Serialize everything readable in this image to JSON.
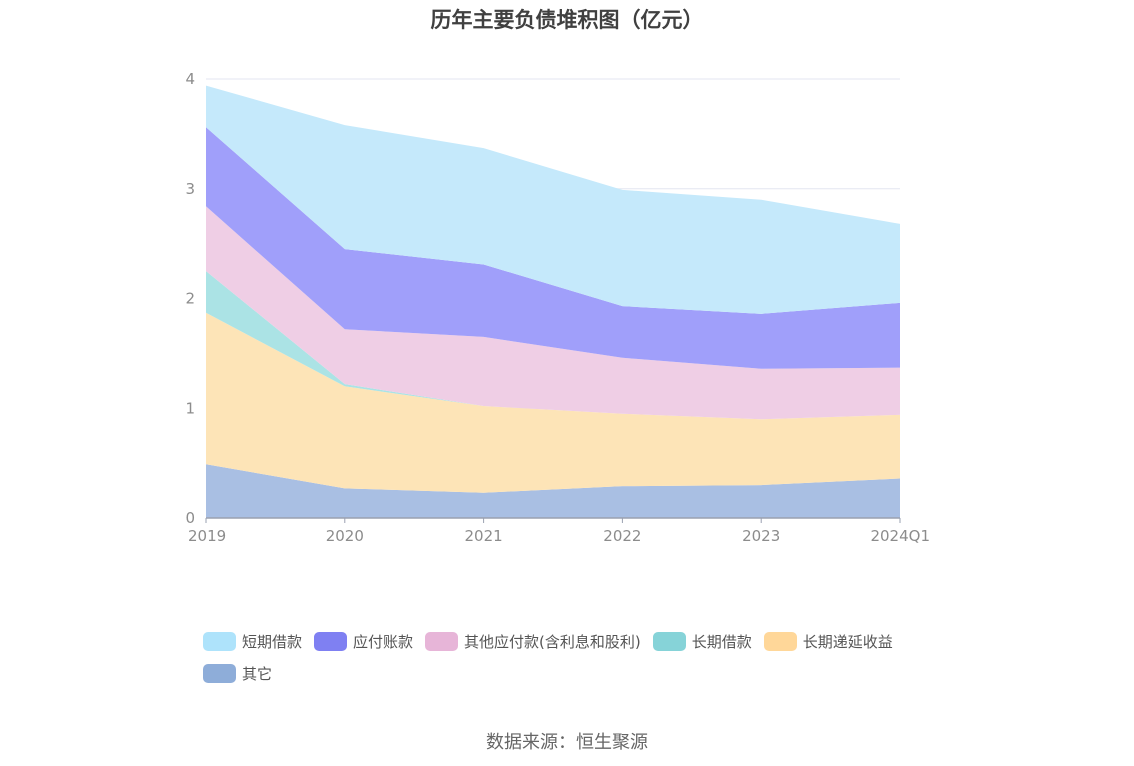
{
  "chart_data": {
    "type": "area",
    "stacked": true,
    "title": "历年主要负债堆积图（亿元）",
    "categories": [
      "2019",
      "2020",
      "2021",
      "2022",
      "2023",
      "2024Q1"
    ],
    "ylim": [
      0,
      4
    ],
    "yticks": [
      "0",
      "1",
      "2",
      "3",
      "4"
    ],
    "grid": true,
    "legend_position": "bottom",
    "series": [
      {
        "name": "其它",
        "color": "#a9bfe3",
        "legend_color": "#8eadd9",
        "values": [
          0.49,
          0.27,
          0.23,
          0.29,
          0.3,
          0.36
        ]
      },
      {
        "name": "长期递延收益",
        "color": "#fde4b7",
        "legend_color": "#ffd799",
        "values": [
          1.38,
          0.93,
          0.79,
          0.66,
          0.6,
          0.58
        ]
      },
      {
        "name": "长期借款",
        "color": "#abe3e5",
        "legend_color": "#86d3d8",
        "values": [
          0.38,
          0.02,
          0.0,
          0.0,
          0.0,
          0.0
        ]
      },
      {
        "name": "其他应付款(含利息和股利)",
        "color": "#efcee5",
        "legend_color": "#e7b5d8",
        "values": [
          0.59,
          0.5,
          0.63,
          0.51,
          0.46,
          0.43
        ]
      },
      {
        "name": "应付账款",
        "color": "#a09ffa",
        "legend_color": "#7f80f2",
        "values": [
          0.72,
          0.73,
          0.66,
          0.47,
          0.5,
          0.59
        ]
      },
      {
        "name": "短期借款",
        "color": "#c5e9fb",
        "legend_color": "#aee3fb",
        "values": [
          0.38,
          1.13,
          1.06,
          1.06,
          1.04,
          0.72
        ]
      }
    ],
    "legend_order": [
      "短期借款",
      "应付账款",
      "其他应付款(含利息和股利)",
      "长期借款",
      "长期递延收益",
      "其它"
    ]
  },
  "colors": {
    "axis": "#9aa0b0",
    "grid": "#e3e6f0",
    "tick_text": "#8c8c8c"
  },
  "footer": {
    "source": "数据来源：恒生聚源"
  }
}
